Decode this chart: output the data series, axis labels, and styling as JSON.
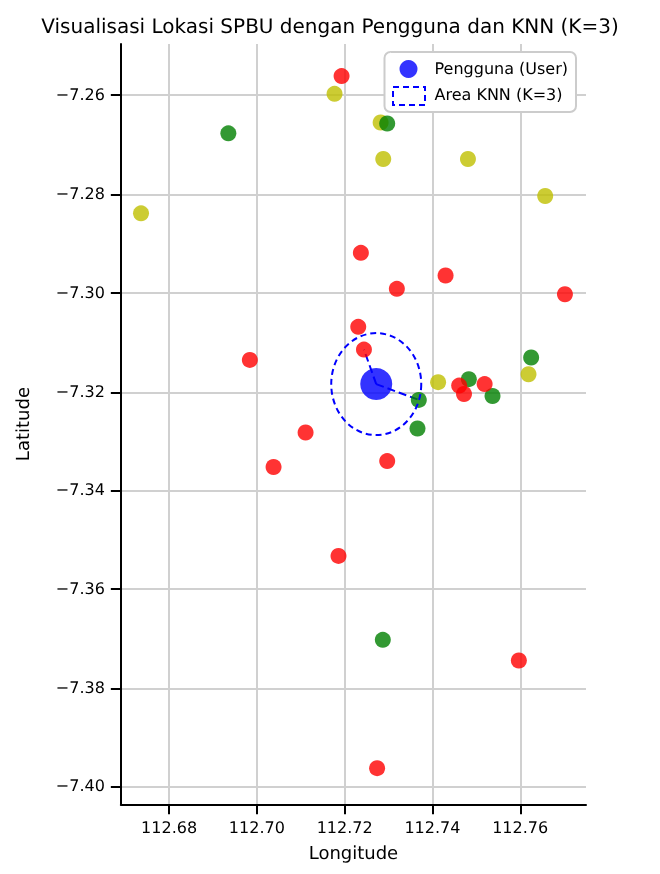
{
  "chart_data": {
    "type": "scatter",
    "title": "Visualisasi Lokasi SPBU dengan Pengguna dan KNN (K=3)",
    "xlabel": "Longitude",
    "ylabel": "Latitude",
    "xlim": [
      112.669,
      112.775
    ],
    "ylim": [
      -7.4036,
      -7.2496
    ],
    "xticks": [
      {
        "value": 112.68,
        "label": "112.68"
      },
      {
        "value": 112.7,
        "label": "112.70"
      },
      {
        "value": 112.72,
        "label": "112.72"
      },
      {
        "value": 112.74,
        "label": "112.74"
      },
      {
        "value": 112.76,
        "label": "112.76"
      }
    ],
    "yticks": [
      {
        "value": -7.4,
        "label": "−7.40"
      },
      {
        "value": -7.38,
        "label": "−7.38"
      },
      {
        "value": -7.36,
        "label": "−7.36"
      },
      {
        "value": -7.34,
        "label": "−7.34"
      },
      {
        "value": -7.32,
        "label": "−7.32"
      },
      {
        "value": -7.3,
        "label": "−7.30"
      },
      {
        "value": -7.28,
        "label": "−7.28"
      },
      {
        "value": -7.26,
        "label": "−7.26"
      }
    ],
    "grid": true,
    "legend": "top right",
    "marker": "circle",
    "series": [
      {
        "type": "scatter",
        "color": "#ff0000",
        "x": [
          112.7193,
          112.7237,
          112.743,
          112.7319,
          112.7702,
          112.7231,
          112.7244,
          112.6984,
          112.7461,
          112.7472,
          112.7519,
          112.7111,
          112.7038,
          112.7297,
          112.7186,
          112.7597,
          112.7274
        ],
        "values": [
          -7.2561,
          -7.2919,
          -7.2965,
          -7.2992,
          -7.3003,
          -7.3069,
          -7.3115,
          -7.3136,
          -7.3188,
          -7.3205,
          -7.3185,
          -7.3283,
          -7.3353,
          -7.3341,
          -7.3533,
          -7.3745,
          -7.3963
        ]
      },
      {
        "type": "scatter",
        "color": "#008000",
        "x": [
          112.6935,
          112.7297,
          112.7483,
          112.7369,
          112.7537,
          112.7366,
          112.7625,
          112.7287
        ],
        "values": [
          -7.2677,
          -7.2657,
          -7.3175,
          -7.3217,
          -7.3209,
          -7.3275,
          -7.3131,
          -7.3703
        ]
      },
      {
        "type": "scatter",
        "color": "#bfbf00",
        "x": [
          112.7177,
          112.7282,
          112.7288,
          112.7481,
          112.6736,
          112.7657,
          112.7413,
          112.7619
        ],
        "values": [
          -7.2597,
          -7.2655,
          -7.2729,
          -7.2729,
          -7.2839,
          -7.2804,
          -7.3181,
          -7.3165
        ]
      },
      {
        "type": "line",
        "color": "#0000ff",
        "line_style": "dashed",
        "marker": "none",
        "x": [
          112.7272,
          112.7244
        ],
        "values": [
          -7.3185,
          -7.3115
        ]
      },
      {
        "type": "line",
        "color": "#0000ff",
        "line_style": "dashed",
        "marker": "none",
        "x": [
          112.7272,
          112.7369
        ],
        "values": [
          -7.3185,
          -7.3217
        ]
      },
      {
        "type": "bubble",
        "name": "Pengguna (User)",
        "color": "#0000ff",
        "x": [
          112.7272
        ],
        "values": [
          -7.3185
        ],
        "sizes": [
          1
        ]
      }
    ],
    "annotations": [
      "Area KNN (K=3)"
    ]
  }
}
